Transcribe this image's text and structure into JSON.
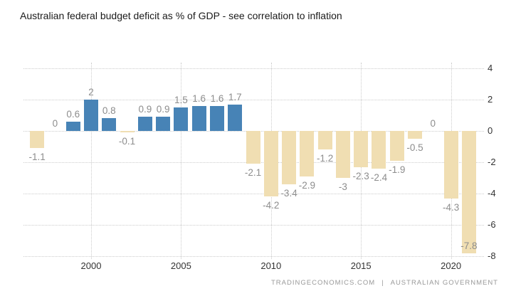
{
  "title": "Australian federal budget deficit as % of GDP - see correlation to inflation",
  "footer": {
    "source_primary": "TRADINGECONOMICS.COM",
    "separator": "|",
    "source_secondary": "AUSTRALIAN GOVERNMENT"
  },
  "colors": {
    "background": "#ffffff",
    "title_text": "#1a1a1a",
    "positive_bar": "#4783b6",
    "negative_bar": "#f0deb2",
    "value_label": "#8d8d8d",
    "axis_label": "#333333",
    "gridline": "#cccccc",
    "footer_text": "#999999"
  },
  "chart_data": {
    "type": "bar",
    "title": "Australian federal budget deficit as % of GDP - see correlation to inflation",
    "x": [
      1997,
      1998,
      1999,
      2000,
      2001,
      2002,
      2003,
      2004,
      2005,
      2006,
      2007,
      2008,
      2009,
      2010,
      2011,
      2012,
      2013,
      2014,
      2015,
      2016,
      2017,
      2018,
      2019,
      2020,
      2021
    ],
    "values": [
      -1.1,
      0,
      0.6,
      2,
      0.8,
      -0.1,
      0.9,
      0.9,
      1.5,
      1.6,
      1.6,
      1.7,
      -2.1,
      -4.2,
      -3.4,
      -2.9,
      -1.2,
      -3,
      -2.3,
      -2.4,
      -1.9,
      -0.5,
      0,
      -4.3,
      -7.8
    ],
    "value_labels": [
      "-1.1",
      "0",
      "0.6",
      "2",
      "0.8",
      "-0.1",
      "0.9",
      "0.9",
      "1.5",
      "1.6",
      "1.6",
      "1.7",
      "-2.1",
      "-4.2",
      "-3.4",
      "-2.9",
      "-1.2",
      "-3",
      "-2.3",
      "-2.4",
      "-1.9",
      "-0.5",
      "0",
      "-4.3",
      "-7.8"
    ],
    "x_tick_years": [
      2000,
      2005,
      2010,
      2015,
      2020
    ],
    "x_tick_labels": [
      "2000",
      "2005",
      "2010",
      "2015",
      "2020"
    ],
    "y_ticks": [
      4,
      2,
      0,
      -2,
      -4,
      -6,
      -8
    ],
    "ylim": [
      -8.4,
      4.4
    ],
    "xlabel": "",
    "ylabel": "",
    "grid": true,
    "legend": false,
    "source": "TRADINGECONOMICS.COM | AUSTRALIAN GOVERNMENT"
  }
}
